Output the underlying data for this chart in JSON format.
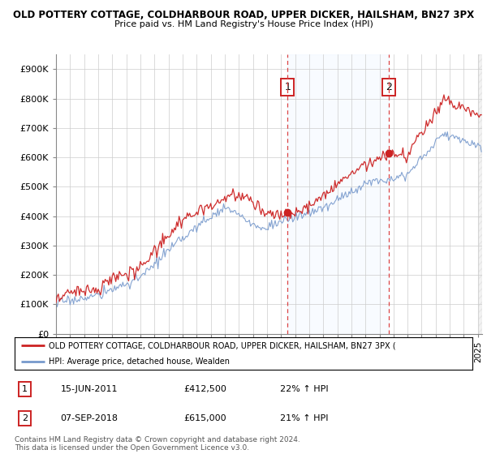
{
  "title_line1": "OLD POTTERY COTTAGE, COLDHARBOUR ROAD, UPPER DICKER, HAILSHAM, BN27 3PX",
  "title_line2": "Price paid vs. HM Land Registry's House Price Index (HPI)",
  "ylabel_ticks": [
    "£0",
    "£100K",
    "£200K",
    "£300K",
    "£400K",
    "£500K",
    "£600K",
    "£700K",
    "£800K",
    "£900K"
  ],
  "ytick_vals": [
    0,
    100000,
    200000,
    300000,
    400000,
    500000,
    600000,
    700000,
    800000,
    900000
  ],
  "ylim": [
    0,
    950000
  ],
  "xlim_start": 1995.0,
  "xlim_end": 2025.3,
  "sale1_x": 2011.46,
  "sale1_y": 412500,
  "sale2_x": 2018.68,
  "sale2_y": 615000,
  "sale1_label": "1",
  "sale2_label": "2",
  "legend_red": "OLD POTTERY COTTAGE, COLDHARBOUR ROAD, UPPER DICKER, HAILSHAM, BN27 3PX (",
  "legend_blue": "HPI: Average price, detached house, Wealden",
  "table_row1": [
    "1",
    "15-JUN-2011",
    "£412,500",
    "22% ↑ HPI"
  ],
  "table_row2": [
    "2",
    "07-SEP-2018",
    "£615,000",
    "21% ↑ HPI"
  ],
  "footnote": "Contains HM Land Registry data © Crown copyright and database right 2024.\nThis data is licensed under the Open Government Licence v3.0.",
  "red_color": "#cc2222",
  "blue_color": "#7799cc",
  "shade_color": "#ddeeff",
  "hatch_color": "#cccccc",
  "grid_color": "#cccccc",
  "seed": 17
}
